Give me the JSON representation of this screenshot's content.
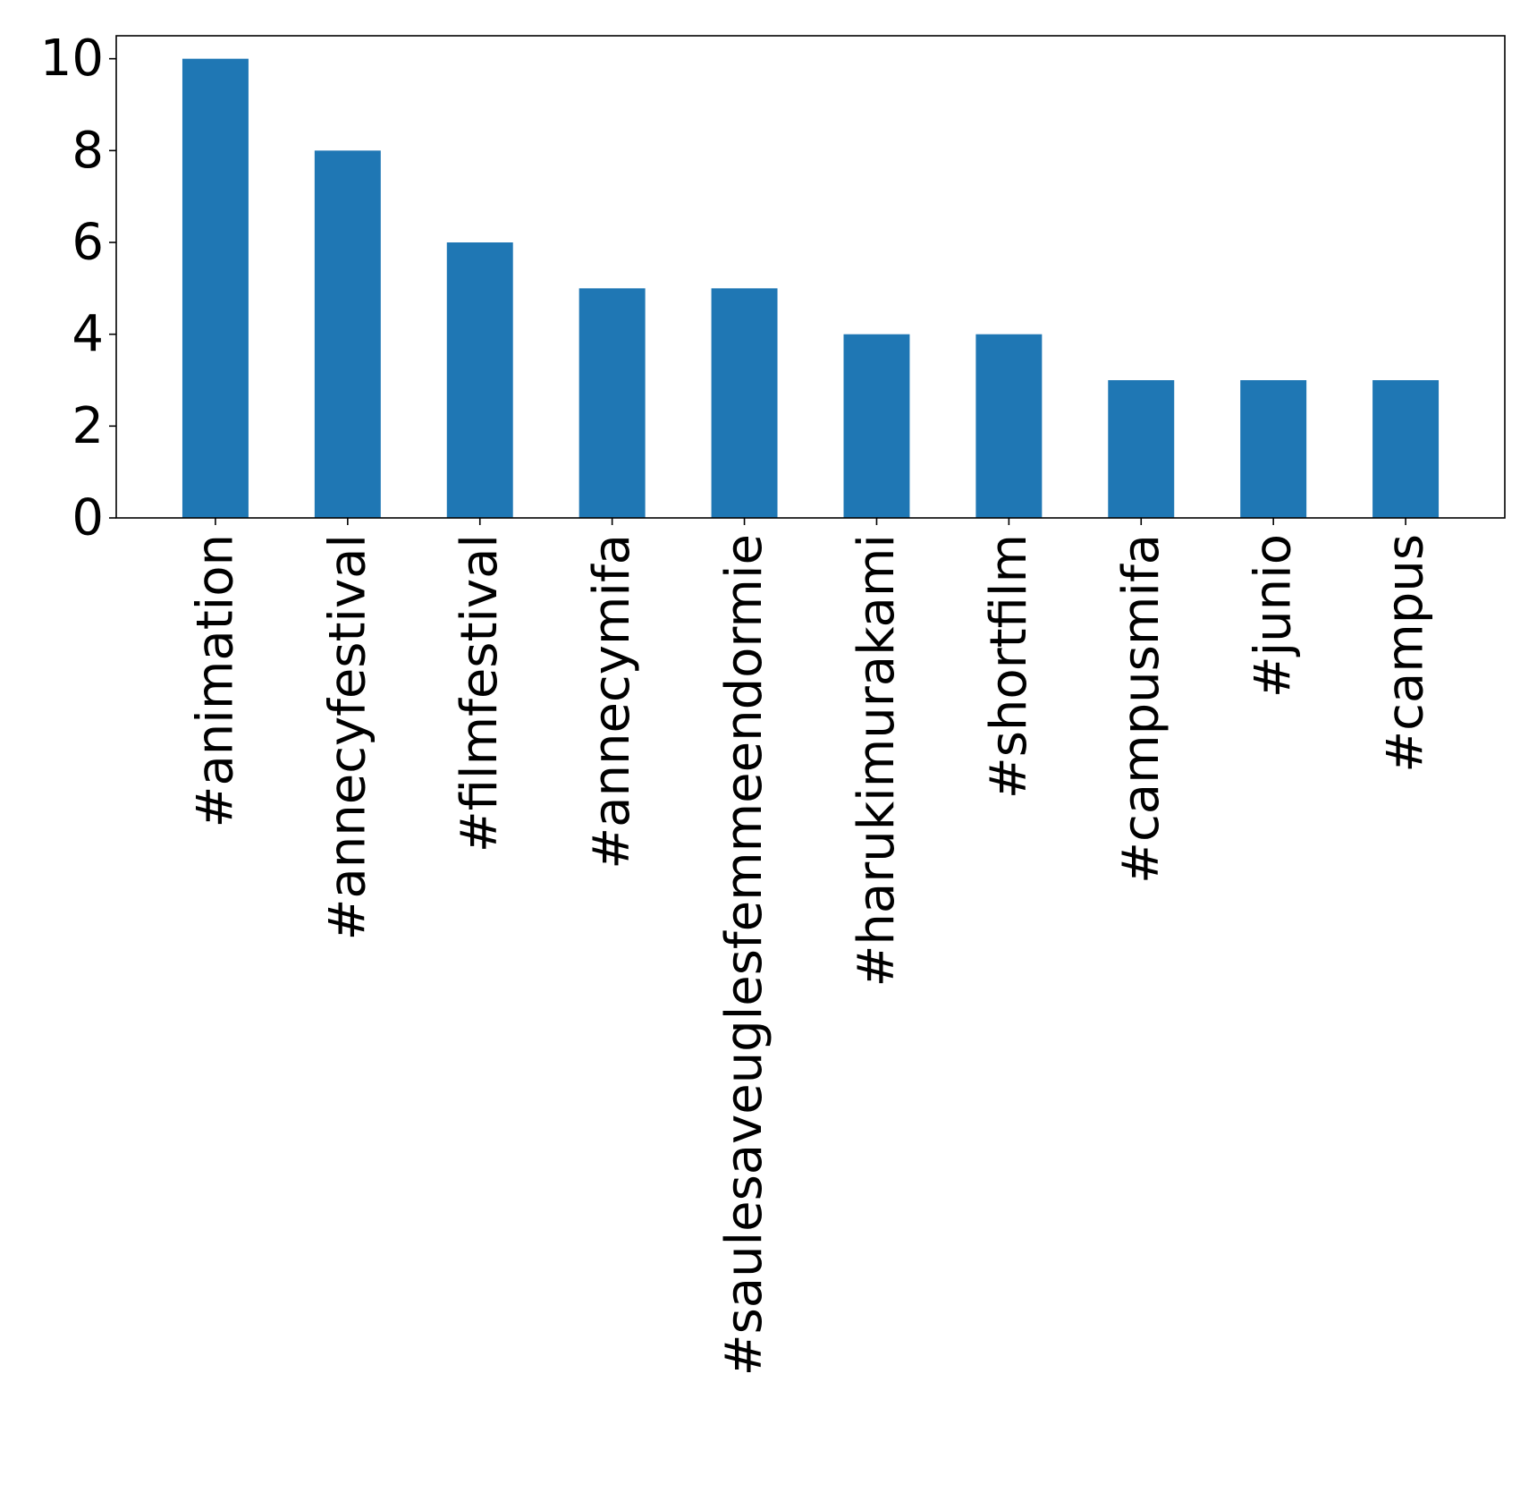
{
  "chart_data": {
    "type": "bar",
    "title": "",
    "xlabel": "",
    "ylabel": "",
    "categories": [
      "#animation",
      "#annecyfestival",
      "#filmfestival",
      "#annecymifa",
      "#saulesaveuglesfemmeendormie",
      "#harukimurakami",
      "#shortfilm",
      "#campusmifa",
      "#junio",
      "#campus"
    ],
    "values": [
      10,
      8,
      6,
      5,
      5,
      4,
      4,
      3,
      3,
      3
    ],
    "ylim": [
      0,
      10.5
    ],
    "yticks": [
      0,
      2,
      4,
      6,
      8,
      10
    ],
    "bar_color": "#1f77b4",
    "grid": false,
    "legend": "none"
  }
}
